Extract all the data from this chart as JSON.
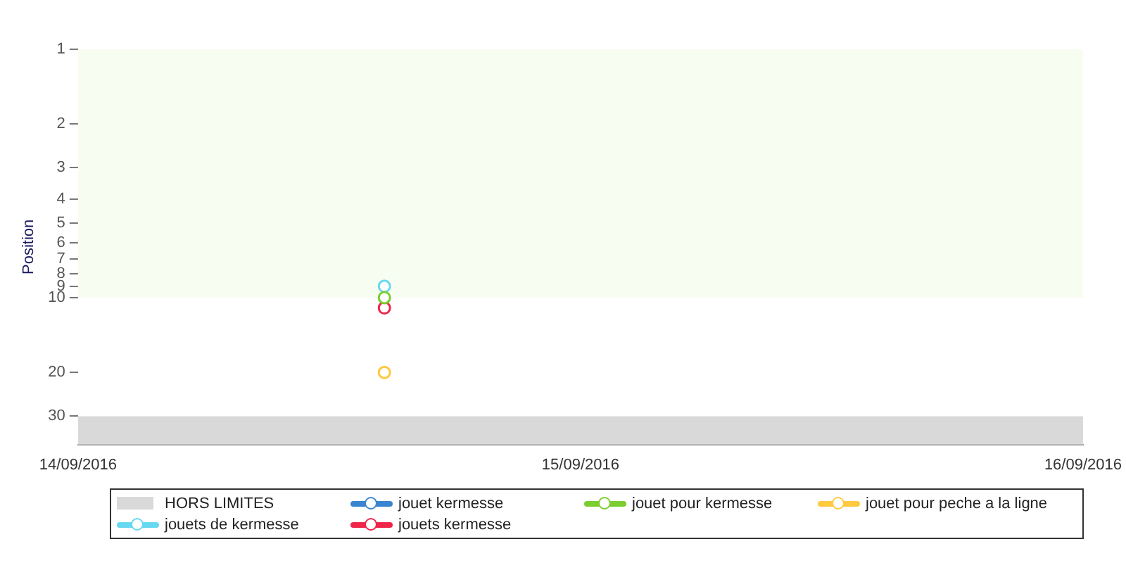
{
  "chart_data": {
    "type": "line",
    "ylabel": "Position",
    "log": "y",
    "marker": "circle",
    "grid": false,
    "legend": "bottom",
    "x": [
      "2016-09-14T14:38"
    ],
    "xlim": [
      "2016-09-14",
      "2016-09-16"
    ],
    "xticks": [
      {
        "value": "2016-09-14",
        "label": "14/09/2016"
      },
      {
        "value": "2016-09-15",
        "label": "15/09/2016"
      },
      {
        "value": "2016-09-16",
        "label": "16/09/2016"
      }
    ],
    "ylim": [
      39,
      1
    ],
    "yticks": [
      1,
      2,
      3,
      4,
      5,
      6,
      7,
      8,
      9,
      10,
      20,
      30
    ],
    "bands": [
      {
        "axis": "y",
        "from": 1,
        "to": 10,
        "color": "#f8fdf2"
      },
      {
        "axis": "y",
        "from": 30,
        "to": 39,
        "label": "HORS LIMITES",
        "color": "#d9d9d9"
      }
    ],
    "series": [
      {
        "name": "jouet kermesse",
        "color": "#3a85d0",
        "values": [
          null
        ]
      },
      {
        "name": "jouet pour kermesse",
        "color": "#7ccd2f",
        "values": [
          10
        ]
      },
      {
        "name": "jouet pour peche a la ligne",
        "color": "#ffc940",
        "values": [
          20
        ]
      },
      {
        "name": "jouets de kermesse",
        "color": "#66d9f0",
        "values": [
          9
        ]
      },
      {
        "name": "jouets kermesse",
        "color": "#f0254a",
        "values": [
          11
        ]
      }
    ]
  }
}
